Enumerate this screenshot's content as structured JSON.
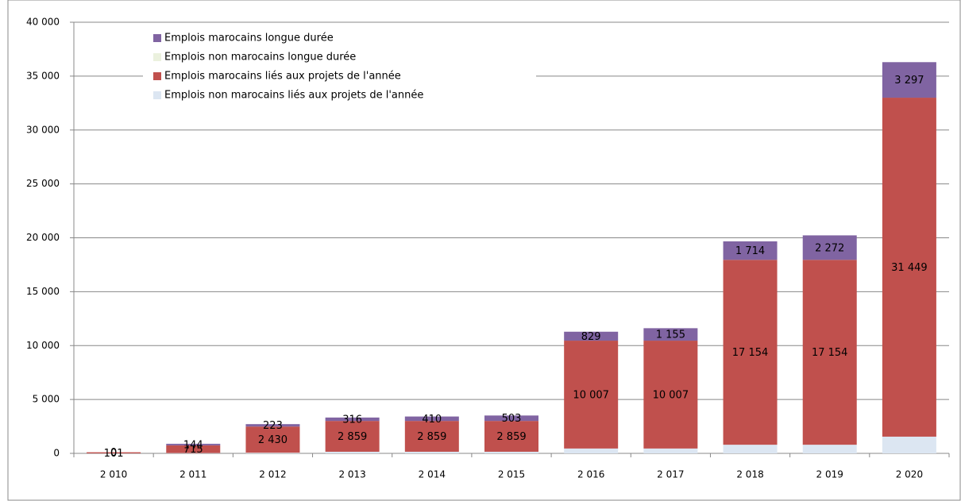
{
  "chart_data": {
    "type": "stacked_bar",
    "categories": [
      "2 010",
      "2 011",
      "2 012",
      "2 013",
      "2 014",
      "2 015",
      "2 016",
      "2 017",
      "2 018",
      "2 019",
      "2 020"
    ],
    "series": [
      {
        "name": "Emplois non marocains liés aux projets de l'année",
        "color": "#dce6f2",
        "values": [
          0,
          30,
          60,
          150,
          150,
          150,
          450,
          450,
          800,
          800,
          1550
        ]
      },
      {
        "name": "Emplois marocains liés aux projets de l'année",
        "color": "#c0504d",
        "values": [
          101,
          715,
          2430,
          2859,
          2859,
          2859,
          10007,
          10007,
          17154,
          17154,
          31449
        ],
        "value_labels": [
          "101",
          "715",
          "2 430",
          "2 859",
          "2 859",
          "2 859",
          "10 007",
          "10 007",
          "17 154",
          "17 154",
          "31 449"
        ]
      },
      {
        "name": "Emplois non marocains longue durée",
        "color": "#ebf1de",
        "values": [
          0,
          0,
          0,
          0,
          0,
          0,
          0,
          0,
          0,
          0,
          0
        ]
      },
      {
        "name": "Emplois marocains longue durée",
        "color": "#8064a2",
        "values": [
          0,
          144,
          223,
          316,
          410,
          503,
          829,
          1155,
          1714,
          2272,
          3297
        ],
        "value_labels": [
          "0",
          "144",
          "223",
          "316",
          "410",
          "503",
          "829",
          "1 155",
          "1 714",
          "2 272",
          "3 297"
        ]
      }
    ],
    "ylim": [
      0,
      40000
    ],
    "yticks": [
      0,
      {
        "value": 5000,
        "label": "5 000"
      },
      {
        "value": 10000,
        "label": "10 000"
      },
      {
        "value": 15000,
        "label": "15 000"
      },
      {
        "value": 20000,
        "label": "20 000"
      },
      {
        "value": 25000,
        "label": "25 000"
      },
      {
        "value": 30000,
        "label": "30 000"
      },
      {
        "value": 35000,
        "label": "35 000"
      },
      {
        "value": 40000,
        "label": "40 000"
      }
    ],
    "grid": true,
    "legend": "top-left"
  }
}
